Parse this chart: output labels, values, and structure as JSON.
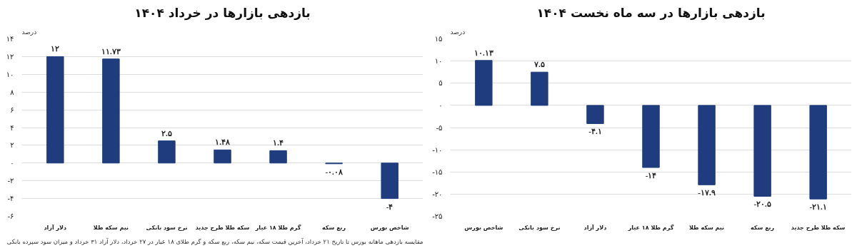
{
  "chart_data": [
    {
      "type": "bar",
      "title": "بازدهی بازارها در خرداد ۱۴۰۴",
      "ylabel": "درصد",
      "categories": [
        "دلار آزاد",
        "نیم سکه طلا",
        "نرخ سود بانکی",
        "سکه طلا طرح جدید",
        "گرم طلا ۱۸ عیار",
        "ربع سکه",
        "شاخص بورس"
      ],
      "values": [
        12,
        11.73,
        2.5,
        1.48,
        1.4,
        -0.08,
        -4
      ],
      "value_labels": [
        "۱۲",
        "۱۱.۷۳",
        "۲.۵",
        "۱.۴۸",
        "۱.۴",
        "-۰.۰۸",
        "-۴"
      ],
      "color": "#1f3c7e",
      "ylim": [
        -6,
        14
      ],
      "yticks": [
        {
          "value": -6,
          "label": "-۶"
        },
        {
          "value": -4,
          "label": "-۴"
        },
        {
          "value": -2,
          "label": "-۲"
        },
        {
          "value": 0,
          "label": "۰"
        },
        {
          "value": 2,
          "label": "۲"
        },
        {
          "value": 4,
          "label": "۴"
        },
        {
          "value": 6,
          "label": "۶"
        },
        {
          "value": 8,
          "label": "۸"
        },
        {
          "value": 10,
          "label": "۱۰"
        },
        {
          "value": 12,
          "label": "۱۲"
        },
        {
          "value": 14,
          "label": "۱۴"
        }
      ],
      "grid": "y",
      "annotations": [
        "مقایسه بازدهی ماهانه بورس تا تاریخ ۲۱ خرداد، آخرین قیمت سکه، نیم سکه، ربع سکه و گرم طلای ۱۸ عیار در ۲۷ خرداد، دلار آزاد ۳۱ خرداد و میزان سود سپرده بانکی"
      ]
    },
    {
      "type": "bar",
      "title": "بازدهی بازارها در سه ماه نخست ۱۴۰۴",
      "ylabel": "درصد",
      "categories": [
        "شاخص بورس",
        "نرخ سود بانکی",
        "دلار آزاد",
        "گرم طلا ۱۸ عیار",
        "نیم سکه طلا",
        "ربع سکه",
        "سکه طلا طرح جدید"
      ],
      "values": [
        10.13,
        7.5,
        -4.1,
        -14,
        -17.9,
        -20.5,
        -21.1
      ],
      "value_labels": [
        "۱۰.۱۳",
        "۷.۵",
        "-۴.۱",
        "-۱۴",
        "-۱۷.۹",
        "-۲۰.۵",
        "-۲۱.۱"
      ],
      "color": "#1f3c7e",
      "ylim": [
        -25,
        15
      ],
      "yticks": [
        {
          "value": -25,
          "label": "-۲۵"
        },
        {
          "value": -20,
          "label": "-۲۰"
        },
        {
          "value": -15,
          "label": "-۱۵"
        },
        {
          "value": -10,
          "label": "-۱۰"
        },
        {
          "value": -5,
          "label": "-۵"
        },
        {
          "value": 0,
          "label": "۰"
        },
        {
          "value": 5,
          "label": "۵"
        },
        {
          "value": 10,
          "label": "۱۰"
        },
        {
          "value": 15,
          "label": "۱۵"
        }
      ],
      "grid": "y"
    }
  ]
}
